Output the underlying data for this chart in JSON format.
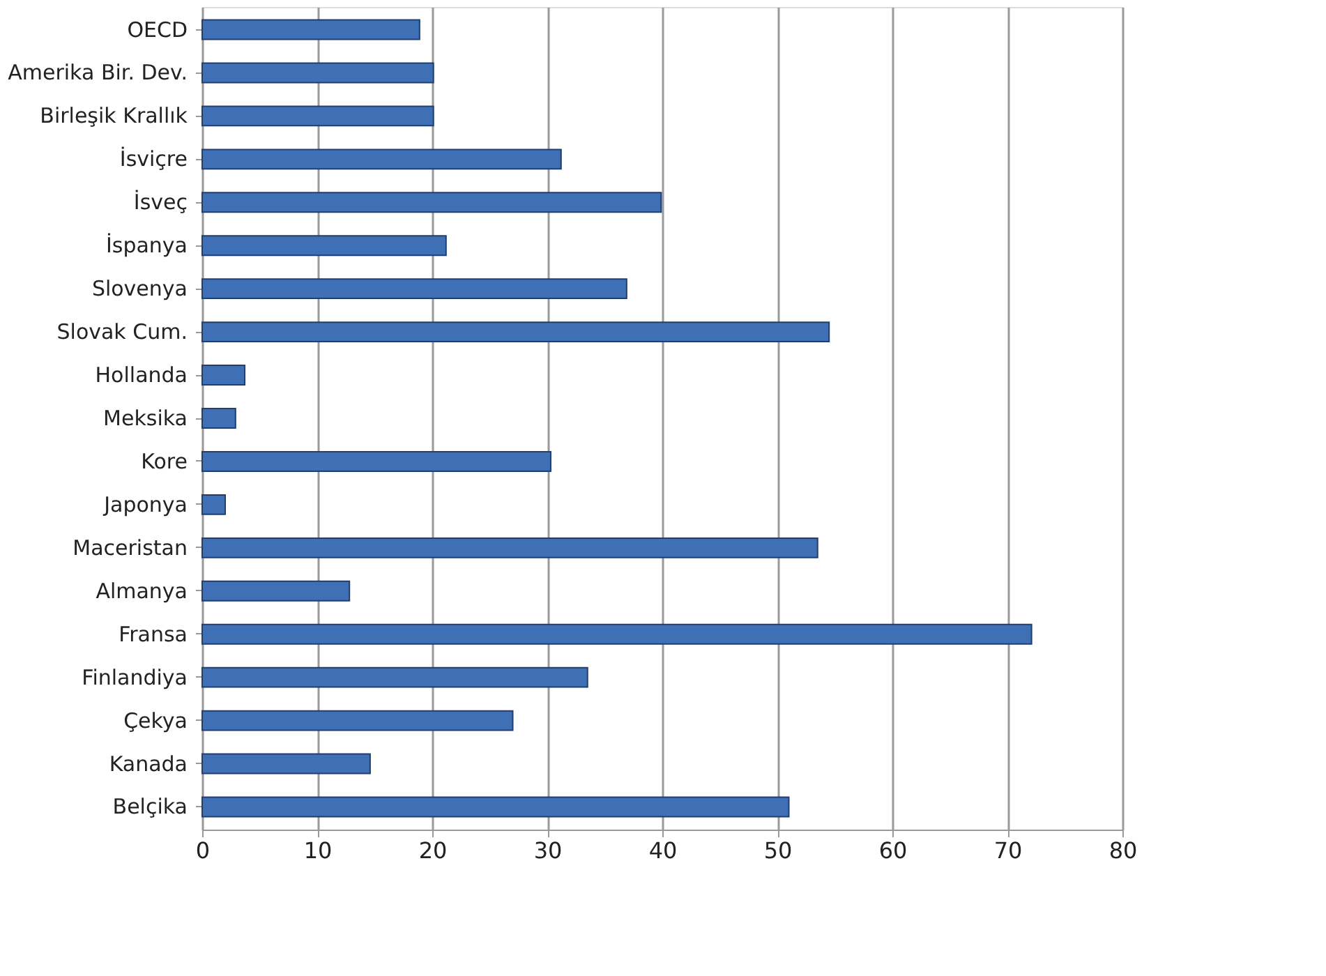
{
  "chart_data": {
    "type": "bar",
    "orientation": "horizontal",
    "categories": [
      "OECD",
      "Amerika Bir. Dev.",
      "Birleşik Krallık",
      "İsviçre",
      "İsveç",
      "İspanya",
      "Slovenya",
      "Slovak Cum.",
      "Hollanda",
      "Meksika",
      "Kore",
      "Japonya",
      "Maceristan",
      "Almanya",
      "Fransa",
      "Finlandiya",
      "Çekya",
      "Kanada",
      "Belçika"
    ],
    "values": [
      18.9,
      20.1,
      20.1,
      31.2,
      39.9,
      21.2,
      36.9,
      54.5,
      3.7,
      2.9,
      30.3,
      2.0,
      53.5,
      12.8,
      72.1,
      33.5,
      27.0,
      14.6,
      51.0
    ],
    "color": "#3f6fb5",
    "xlim": [
      0,
      80
    ],
    "xticks": [
      0,
      10,
      20,
      30,
      40,
      50,
      60,
      70,
      80
    ],
    "grid": "x"
  }
}
